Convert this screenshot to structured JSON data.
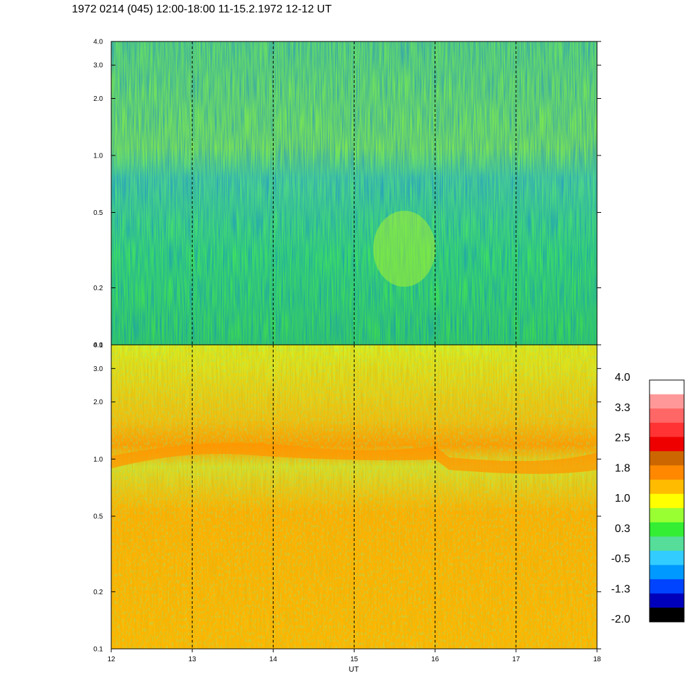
{
  "title": "1972 0214 (045) 12:00-18:00 11-15.2.1972  12-12 UT",
  "chart_data": [
    {
      "type": "heatmap",
      "panel": "upper",
      "x_label": "UT",
      "x_range": [
        12,
        18
      ],
      "x_ticks": [
        12,
        13,
        14,
        15,
        16,
        17,
        18
      ],
      "y_scale": "log",
      "y_range": [
        0.1,
        4.0
      ],
      "y_ticks": [
        0.1,
        0.2,
        0.5,
        1.0,
        2.0,
        3.0,
        4.0
      ],
      "y_tick_labels": [
        "0.1",
        "0.2",
        "0.5",
        "1.0",
        "2.0",
        "3.0",
        "4.0"
      ],
      "dashed_hour_lines": [
        13,
        14,
        15,
        16,
        17
      ],
      "dominant_level": 0.3
    },
    {
      "type": "heatmap",
      "panel": "lower",
      "x_label": "UT",
      "x_range": [
        12,
        18
      ],
      "x_ticks": [
        12,
        13,
        14,
        15,
        16,
        17,
        18
      ],
      "x_tick_labels": [
        "12",
        "13",
        "14",
        "15",
        "16",
        "17",
        "18"
      ],
      "y_scale": "log",
      "y_range": [
        0.1,
        4.0
      ],
      "y_ticks": [
        0.1,
        0.2,
        0.5,
        1.0,
        2.0,
        3.0,
        4.0
      ],
      "y_tick_labels": [
        "0.1",
        "0.2",
        "0.5",
        "1.0",
        "2.0",
        "3.0",
        "4.0"
      ],
      "dashed_hour_lines": [
        13,
        14,
        15,
        16,
        17
      ],
      "dominant_level": 1.4
    }
  ],
  "colorbar": {
    "labels": [
      "4.0",
      "3.3",
      "2.5",
      "1.8",
      "1.0",
      "0.3",
      "-0.5",
      "-1.3",
      "-2.0"
    ],
    "colors": [
      "#ffffff",
      "#ff9999",
      "#ff6666",
      "#ff3333",
      "#ee0000",
      "#cc6600",
      "#ff8800",
      "#ffbb00",
      "#ffff00",
      "#99ff33",
      "#33ee33",
      "#55dd99",
      "#33ccff",
      "#0099ff",
      "#0044ff",
      "#0000bb",
      "#000000"
    ]
  },
  "x_axis_label": "UT"
}
